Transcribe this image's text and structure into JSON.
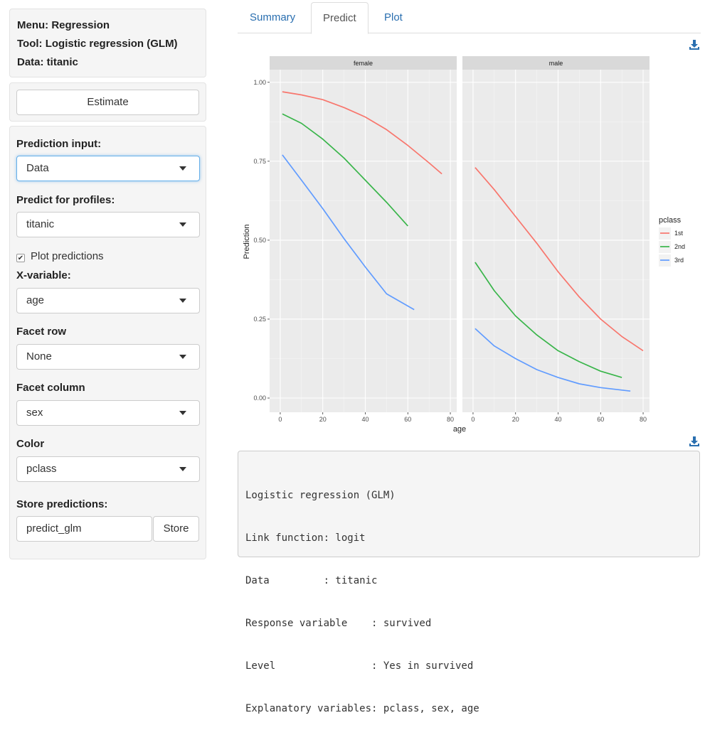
{
  "sidebar": {
    "info": {
      "menu": "Menu: Regression",
      "tool": "Tool: Logistic regression (GLM)",
      "data": "Data: titanic"
    },
    "estimate_label": "Estimate",
    "prediction_input": {
      "label": "Prediction input:",
      "value": "Data"
    },
    "predict_profiles": {
      "label": "Predict for profiles:",
      "value": "titanic"
    },
    "plot_predictions": {
      "label": "Plot predictions",
      "checked": true
    },
    "x_variable": {
      "label": "X-variable:",
      "value": "age"
    },
    "facet_row": {
      "label": "Facet row",
      "value": "None"
    },
    "facet_column": {
      "label": "Facet column",
      "value": "sex"
    },
    "color": {
      "label": "Color",
      "value": "pclass"
    },
    "store": {
      "label": "Store predictions:",
      "input_value": "predict_glm",
      "button_label": "Store"
    }
  },
  "tabs": [
    {
      "label": "Summary",
      "active": false
    },
    {
      "label": "Predict",
      "active": true
    },
    {
      "label": "Plot",
      "active": false
    }
  ],
  "icons": {
    "download": "download-icon",
    "caret": "chevron-down-icon",
    "checkbox": "check-icon"
  },
  "chart_data": {
    "type": "line",
    "xlabel": "age",
    "ylabel": "Prediction",
    "ylim": [
      0,
      1
    ],
    "xlim": [
      -5,
      83
    ],
    "yticks": [
      "0.00",
      "0.25",
      "0.50",
      "0.75",
      "1.00"
    ],
    "xticks": [
      "0",
      "20",
      "40",
      "60",
      "80"
    ],
    "grid": true,
    "legend": {
      "title": "pclass",
      "placement": "right",
      "entries": [
        "1st",
        "2nd",
        "3rd"
      ]
    },
    "colors": {
      "1st": "#f8766d",
      "2nd": "#39b54a",
      "3rd": "#619cff"
    },
    "facets": [
      {
        "label": "female",
        "series": [
          {
            "name": "1st",
            "x": [
              1,
              10,
              20,
              30,
              40,
              50,
              60,
              70,
              76
            ],
            "y": [
              0.97,
              0.96,
              0.945,
              0.92,
              0.89,
              0.85,
              0.8,
              0.745,
              0.71
            ]
          },
          {
            "name": "2nd",
            "x": [
              1,
              10,
              20,
              30,
              40,
              50,
              60
            ],
            "y": [
              0.9,
              0.87,
              0.82,
              0.76,
              0.69,
              0.62,
              0.545
            ]
          },
          {
            "name": "3rd",
            "x": [
              1,
              10,
              20,
              30,
              40,
              50,
              63
            ],
            "y": [
              0.77,
              0.69,
              0.6,
              0.505,
              0.415,
              0.33,
              0.28
            ]
          }
        ]
      },
      {
        "label": "male",
        "series": [
          {
            "name": "1st",
            "x": [
              1,
              10,
              20,
              30,
              40,
              50,
              60,
              70,
              80
            ],
            "y": [
              0.73,
              0.66,
              0.575,
              0.49,
              0.4,
              0.32,
              0.25,
              0.195,
              0.15
            ]
          },
          {
            "name": "2nd",
            "x": [
              1,
              10,
              20,
              30,
              40,
              50,
              60,
              70
            ],
            "y": [
              0.43,
              0.34,
              0.26,
              0.2,
              0.15,
              0.115,
              0.085,
              0.065
            ]
          },
          {
            "name": "3rd",
            "x": [
              1,
              10,
              20,
              30,
              40,
              50,
              60,
              74
            ],
            "y": [
              0.22,
              0.165,
              0.125,
              0.09,
              0.065,
              0.045,
              0.033,
              0.022
            ]
          }
        ]
      }
    ]
  },
  "output_lines": [
    "Logistic regression (GLM)",
    "Link function: logit",
    "Data         : titanic",
    "Response variable    : survived",
    "Level                : Yes in survived",
    "Explanatory variables: pclass, sex, age"
  ]
}
